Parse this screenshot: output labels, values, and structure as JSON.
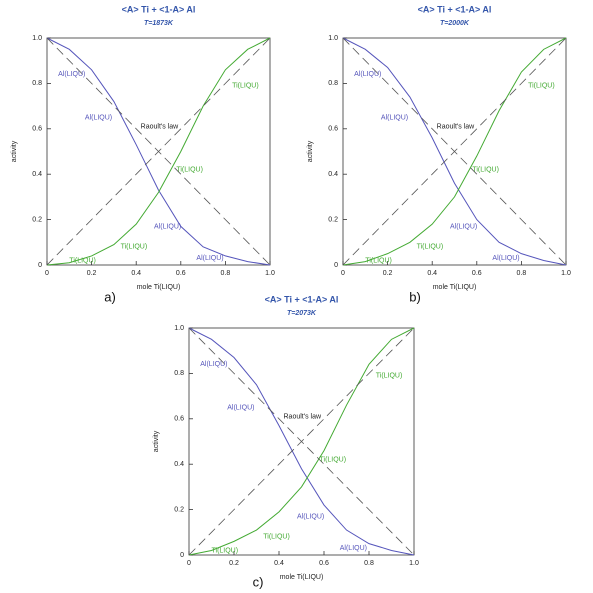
{
  "chart_data": [
    {
      "type": "line",
      "title": "<A> Ti +  <1-A> Al",
      "subtitle": "T=1873K",
      "xlabel": "mole Ti(LIQU)",
      "ylabel": "activity",
      "panel_label": "a)",
      "x": [
        0,
        0.1,
        0.2,
        0.3,
        0.4,
        0.5,
        0.6,
        0.7,
        0.8,
        0.9,
        1
      ],
      "series": [
        {
          "color": "#5555bb",
          "values": [
            1,
            0.95,
            0.86,
            0.72,
            0.53,
            0.33,
            0.17,
            0.08,
            0.04,
            0.015,
            0
          ]
        },
        {
          "color": "#44aa33",
          "values": [
            0,
            0.01,
            0.04,
            0.09,
            0.18,
            0.32,
            0.5,
            0.7,
            0.86,
            0.95,
            1
          ]
        },
        {
          "color": "#555555",
          "dash": true,
          "values": [
            0,
            0.1,
            0.2,
            0.3,
            0.4,
            0.5,
            0.6,
            0.7,
            0.8,
            0.9,
            1
          ]
        },
        {
          "color": "#555555",
          "dash": true,
          "values": [
            1,
            0.9,
            0.8,
            0.7,
            0.6,
            0.5,
            0.4,
            0.3,
            0.2,
            0.1,
            0
          ]
        }
      ],
      "annotations": [
        "Al(LIQU)",
        "Al(LIQU)",
        "Raoult's law",
        "Ti(LIQU)",
        "Ti(LIQU)",
        "Al(LIQU)",
        "Ti(LIQU)",
        "Ti(LIQU)",
        "Al(LIQU)"
      ],
      "xlim": [
        0,
        1
      ],
      "ylim": [
        0,
        1
      ],
      "xticks": [
        0,
        0.2,
        0.4,
        0.6,
        0.8,
        {
          "value": 1,
          "label": "1.0"
        }
      ],
      "yticks": [
        0,
        0.2,
        0.4,
        0.6,
        0.8,
        {
          "value": 1,
          "label": "1.0"
        }
      ]
    },
    {
      "type": "line",
      "title": "<A> Ti +  <1-A> Al",
      "subtitle": "T=2000K",
      "xlabel": "mole Ti(LIQU)",
      "ylabel": "activity",
      "panel_label": "b)",
      "x": [
        0,
        0.1,
        0.2,
        0.3,
        0.4,
        0.5,
        0.6,
        0.7,
        0.8,
        0.9,
        1
      ],
      "series": [
        {
          "color": "#5555bb",
          "values": [
            1,
            0.95,
            0.87,
            0.74,
            0.56,
            0.36,
            0.2,
            0.1,
            0.05,
            0.02,
            0
          ]
        },
        {
          "color": "#44aa33",
          "values": [
            0,
            0.015,
            0.05,
            0.1,
            0.18,
            0.3,
            0.48,
            0.68,
            0.85,
            0.95,
            1
          ]
        },
        {
          "color": "#555555",
          "dash": true,
          "values": [
            0,
            0.1,
            0.2,
            0.3,
            0.4,
            0.5,
            0.6,
            0.7,
            0.8,
            0.9,
            1
          ]
        },
        {
          "color": "#555555",
          "dash": true,
          "values": [
            1,
            0.9,
            0.8,
            0.7,
            0.6,
            0.5,
            0.4,
            0.3,
            0.2,
            0.1,
            0
          ]
        }
      ],
      "annotations": [
        "Al(LIQU)",
        "Al(LIQU)",
        "Raoult's law",
        "Ti(LIQU)",
        "Ti(LIQU)",
        "Al(LIQU)",
        "Ti(LIQU)",
        "Ti(LIQU)",
        "Al(LIQU)"
      ],
      "xlim": [
        0,
        1
      ],
      "ylim": [
        0,
        1
      ],
      "xticks": [
        0,
        0.2,
        0.4,
        0.6,
        0.8,
        {
          "value": 1,
          "label": "1.0"
        }
      ],
      "yticks": [
        0,
        0.2,
        0.4,
        0.6,
        0.8,
        {
          "value": 1,
          "label": "1.0"
        }
      ]
    },
    {
      "type": "line",
      "title": "<A> Ti +  <1-A> Al",
      "subtitle": "T=2073K",
      "xlabel": "mole Ti(LIQU)",
      "ylabel": "activity",
      "panel_label": "c)",
      "x": [
        0,
        0.1,
        0.2,
        0.3,
        0.4,
        0.5,
        0.6,
        0.7,
        0.8,
        0.9,
        1
      ],
      "series": [
        {
          "color": "#5555bb",
          "values": [
            1,
            0.95,
            0.87,
            0.75,
            0.57,
            0.38,
            0.22,
            0.11,
            0.05,
            0.02,
            0
          ]
        },
        {
          "color": "#44aa33",
          "values": [
            0,
            0.02,
            0.06,
            0.11,
            0.19,
            0.3,
            0.46,
            0.66,
            0.84,
            0.95,
            1
          ]
        },
        {
          "color": "#555555",
          "dash": true,
          "values": [
            0,
            0.1,
            0.2,
            0.3,
            0.4,
            0.5,
            0.6,
            0.7,
            0.8,
            0.9,
            1
          ]
        },
        {
          "color": "#555555",
          "dash": true,
          "values": [
            1,
            0.9,
            0.8,
            0.7,
            0.6,
            0.5,
            0.4,
            0.3,
            0.2,
            0.1,
            0
          ]
        }
      ],
      "annotations": [
        "Al(LIQU)",
        "Al(LIQU)",
        "Raoult's law",
        "Ti(LIQU)",
        "Ti(LIQU)",
        "Al(LIQU)",
        "Ti(LIQU)",
        "Ti(LIQU)",
        "Al(LIQU)"
      ],
      "xlim": [
        0,
        1
      ],
      "ylim": [
        0,
        1
      ],
      "xticks": [
        0,
        0.2,
        0.4,
        0.6,
        0.8,
        {
          "value": 1,
          "label": "1.0"
        }
      ],
      "yticks": [
        0,
        0.2,
        0.4,
        0.6,
        0.8,
        {
          "value": 1,
          "label": "1.0"
        }
      ]
    }
  ]
}
